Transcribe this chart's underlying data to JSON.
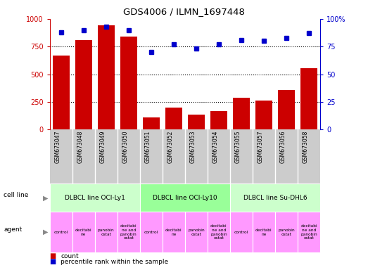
{
  "title": "GDS4006 / ILMN_1697448",
  "samples": [
    "GSM673047",
    "GSM673048",
    "GSM673049",
    "GSM673050",
    "GSM673051",
    "GSM673052",
    "GSM673053",
    "GSM673054",
    "GSM673055",
    "GSM673057",
    "GSM673056",
    "GSM673058"
  ],
  "counts": [
    670,
    810,
    940,
    840,
    110,
    200,
    135,
    165,
    285,
    265,
    360,
    555
  ],
  "percentiles": [
    88,
    90,
    93,
    90,
    70,
    77,
    73,
    77,
    81,
    80,
    83,
    87
  ],
  "ylim_left": [
    0,
    1000
  ],
  "ylim_right": [
    0,
    100
  ],
  "yticks_left": [
    0,
    250,
    500,
    750,
    1000
  ],
  "yticks_right": [
    0,
    25,
    50,
    75,
    100
  ],
  "ytick_right_labels": [
    "0",
    "25",
    "50",
    "75",
    "100%"
  ],
  "bar_color": "#cc0000",
  "dot_color": "#0000cc",
  "cell_lines": [
    {
      "label": "DLBCL line OCI-Ly1",
      "start": 0,
      "end": 4
    },
    {
      "label": "DLBCL line OCI-Ly10",
      "start": 4,
      "end": 8
    },
    {
      "label": "DLBCL line Su-DHL6",
      "start": 8,
      "end": 12
    }
  ],
  "cell_line_colors": [
    "#ccffcc",
    "#99ff99",
    "#66ee88"
  ],
  "agent_labels": [
    "control",
    "decitabi\nne",
    "panobin\nostat",
    "decitabi\nne and\npanobin\nostat",
    "control",
    "decitabi\nne",
    "panobin\nostat",
    "decitabi\nne and\npanobin\nostat",
    "control",
    "decitabi\nne",
    "panobin\nostat",
    "decitabi\nne and\npanobin\nostat"
  ],
  "agent_color": "#ff99ff",
  "xtick_bg": "#cccccc",
  "left_tick_color": "#cc0000",
  "right_tick_color": "#0000cc",
  "hline_vals": [
    250,
    500,
    750
  ],
  "legend_count_color": "#cc0000",
  "legend_pct_color": "#0000cc"
}
